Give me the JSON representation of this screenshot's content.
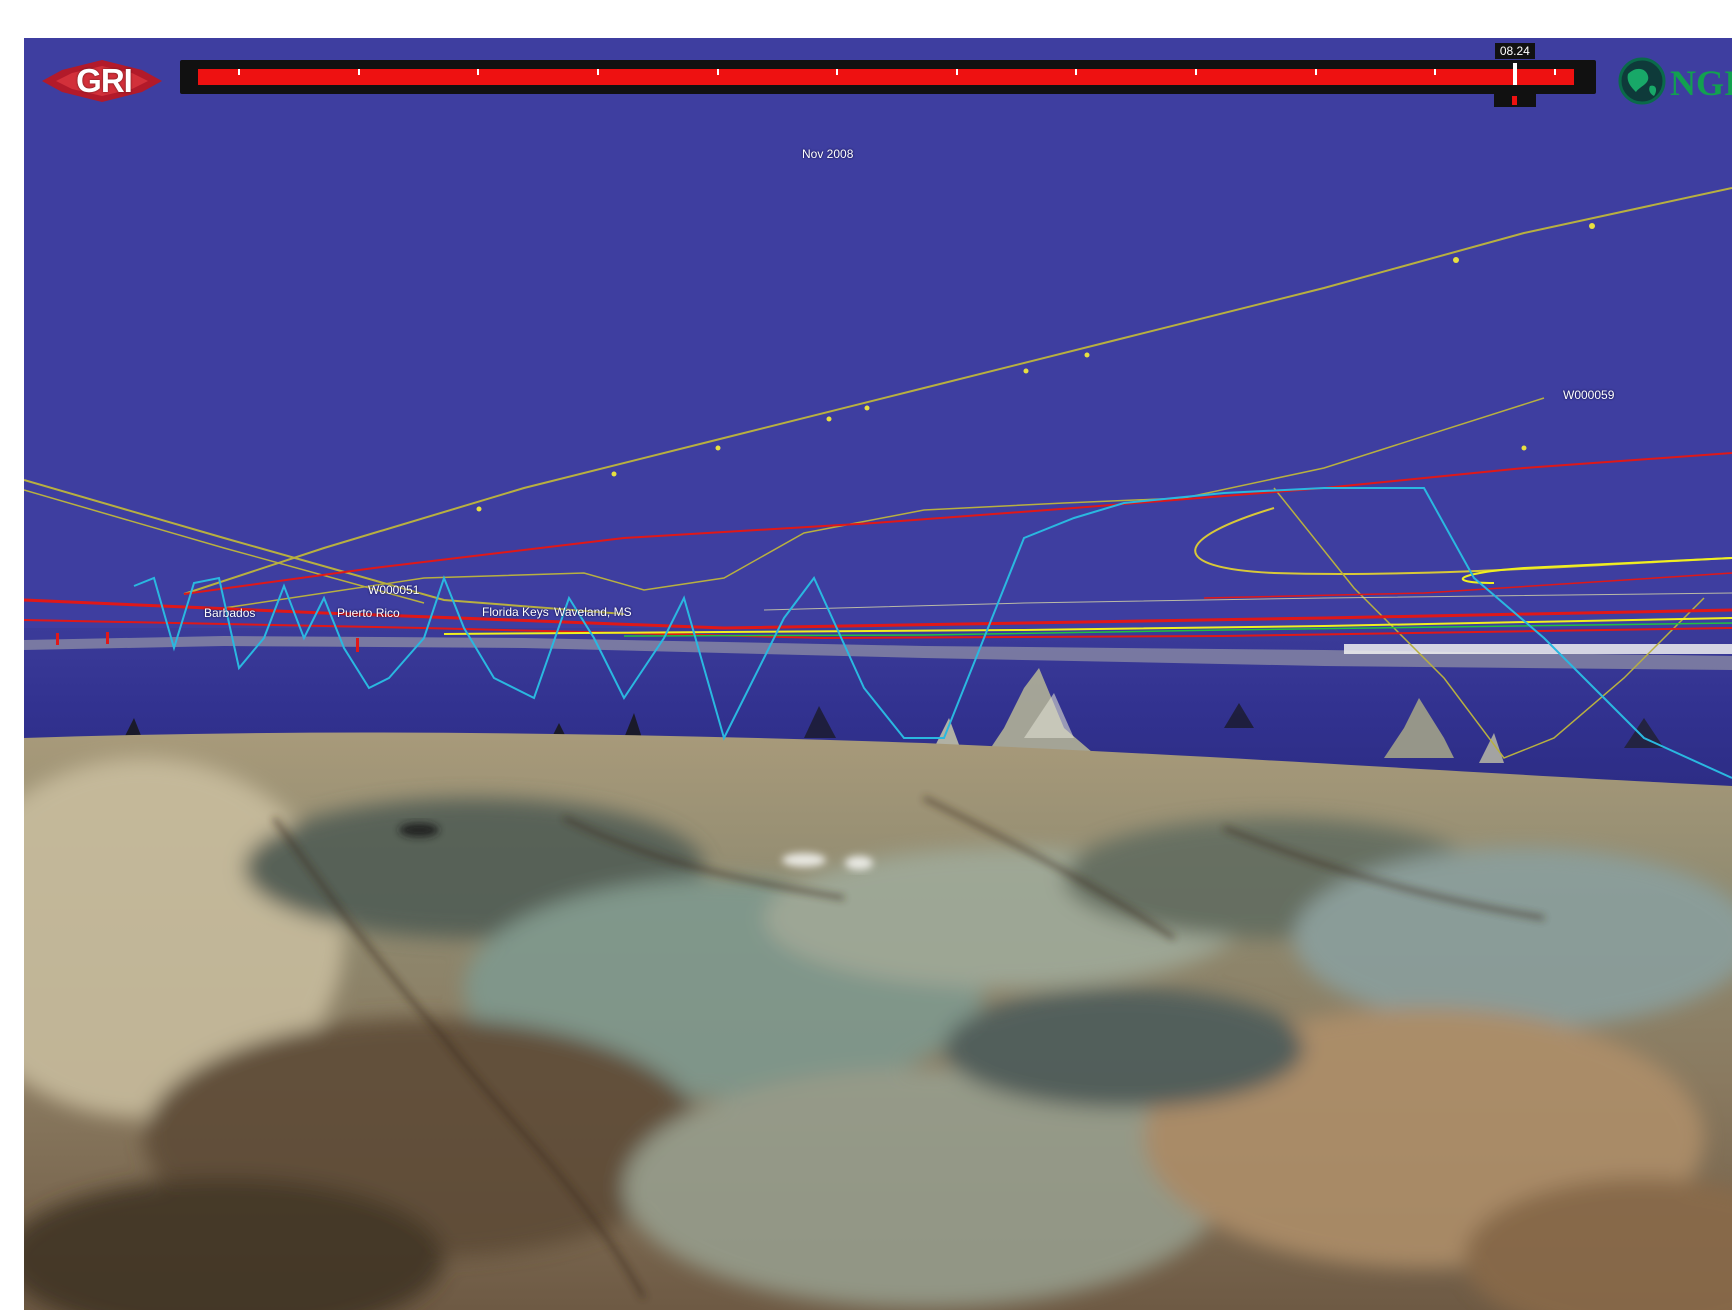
{
  "header": {
    "left_logo": {
      "text": "GRI",
      "icon": "gri-logo-icon"
    },
    "right_logo": {
      "text": "NGI",
      "icon": "globe-icon"
    }
  },
  "timeline": {
    "time_readout": "08.24",
    "progress": 0.957,
    "tick_count": 12,
    "fill_color": "#ee1111"
  },
  "scene": {
    "date_label": "Nov 2008",
    "track_labels": {
      "w000059": "W000059",
      "w000051": "W000051"
    },
    "place_labels": {
      "barbados": "Barbados",
      "puerto_rico": "Puerto Rico",
      "florida_keys": "Florida Keys",
      "waveland": "Waveland, MS"
    },
    "colors": {
      "sky": "#3e3ea0",
      "track_red": "#e01818",
      "track_olive": "#b8b040",
      "track_cyan": "#2ab8e0",
      "track_yellow": "#f0f020",
      "track_green": "#20c040"
    }
  }
}
